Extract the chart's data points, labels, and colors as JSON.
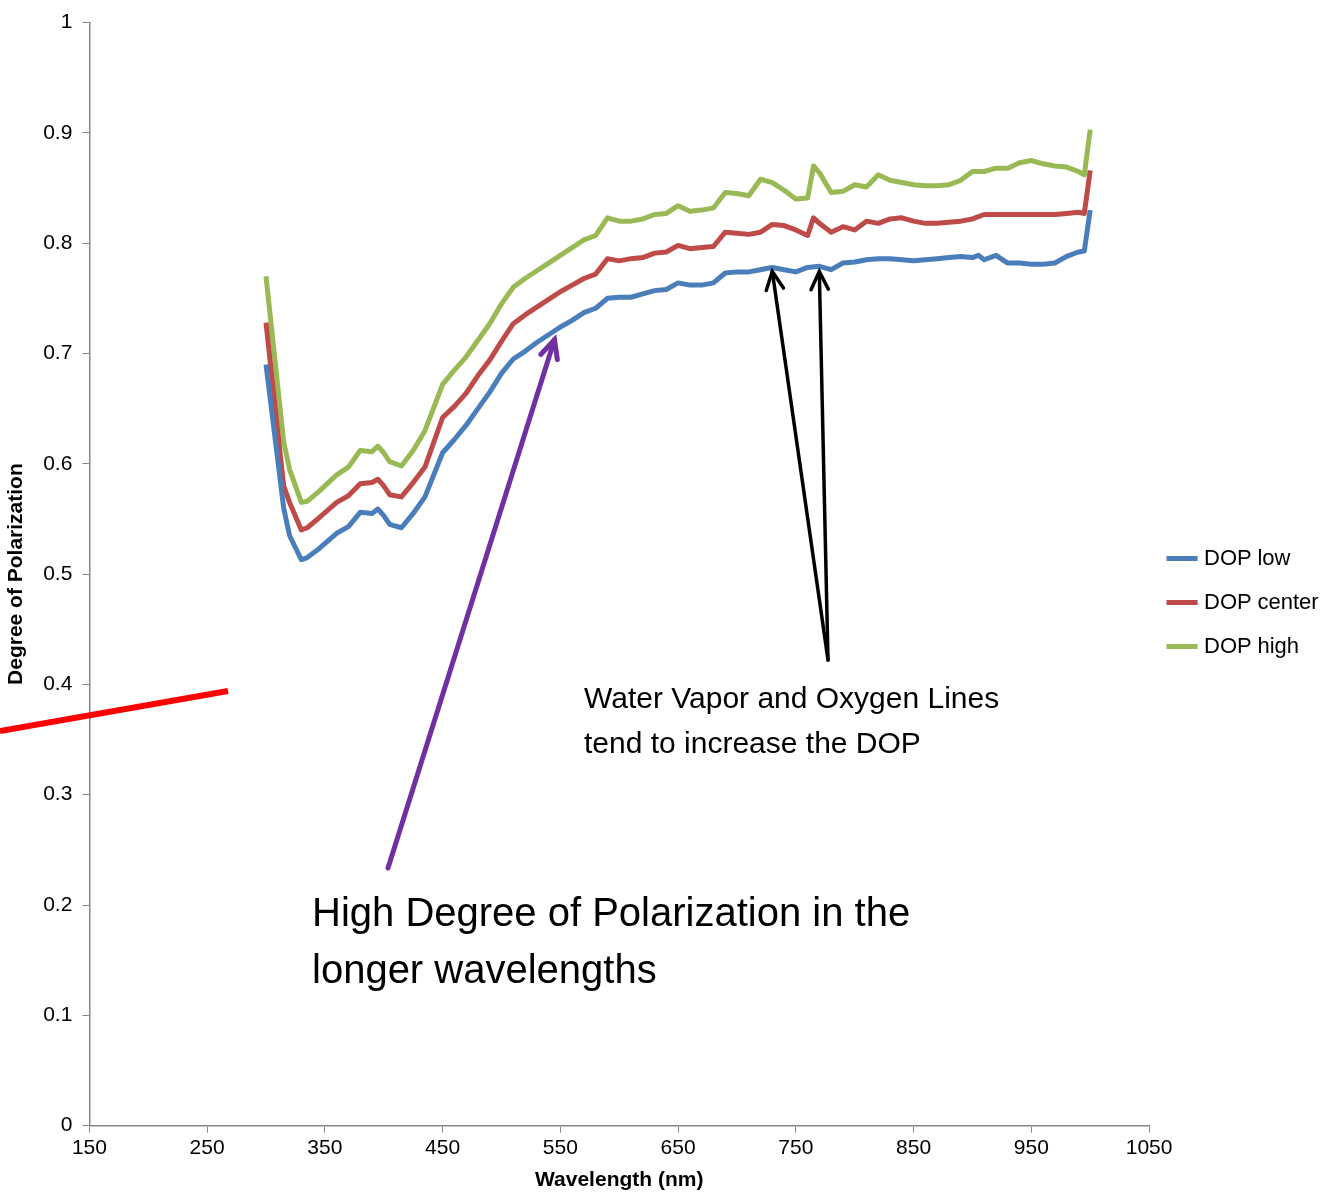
{
  "chart_data": {
    "type": "line",
    "xlabel": "Wavelength (nm)",
    "ylabel": "Degree of Polarization",
    "xlim": [
      150,
      1050
    ],
    "xticks": [
      150,
      250,
      350,
      450,
      550,
      650,
      750,
      850,
      950,
      1050
    ],
    "ylim": [
      0,
      1
    ],
    "yticks": [
      0,
      0.1,
      0.2,
      0.3,
      0.4,
      0.5,
      0.6,
      0.7,
      0.8,
      0.9,
      1
    ],
    "grid": false,
    "legend": "right",
    "marker": "none",
    "line_style": "solid",
    "annotations": [
      {
        "text": "Water Vapor and Oxygen Lines tend to increase the DOP",
        "x": 730,
        "y": 0.778
      },
      {
        "text": "High Degree of Polarization in the longer wavelengths",
        "x": 545,
        "y": 0.716
      }
    ],
    "series": [
      {
        "name": "DOP low",
        "color": "#4a7ebb",
        "x": [
          300,
          315,
          320,
          330,
          335,
          345,
          360,
          370,
          380,
          390,
          395,
          400,
          405,
          415,
          425,
          435,
          450,
          460,
          470,
          480,
          490,
          500,
          510,
          520,
          530,
          540,
          550,
          560,
          570,
          580,
          590,
          600,
          610,
          620,
          630,
          640,
          650,
          660,
          670,
          680,
          690,
          700,
          710,
          720,
          730,
          740,
          750,
          760,
          770,
          780,
          790,
          800,
          810,
          820,
          830,
          840,
          850,
          860,
          870,
          880,
          890,
          900,
          905,
          910,
          920,
          930,
          940,
          950,
          960,
          970,
          980,
          990,
          995,
          1000
        ],
        "values": [
          0.69,
          0.56,
          0.535,
          0.513,
          0.515,
          0.523,
          0.537,
          0.543,
          0.556,
          0.555,
          0.559,
          0.553,
          0.545,
          0.542,
          0.555,
          0.57,
          0.61,
          0.622,
          0.635,
          0.65,
          0.665,
          0.682,
          0.695,
          0.702,
          0.71,
          0.717,
          0.724,
          0.73,
          0.737,
          0.741,
          0.75,
          0.751,
          0.751,
          0.754,
          0.757,
          0.758,
          0.764,
          0.762,
          0.762,
          0.764,
          0.773,
          0.774,
          0.774,
          0.776,
          0.778,
          0.776,
          0.774,
          0.778,
          0.779,
          0.776,
          0.782,
          0.783,
          0.785,
          0.786,
          0.786,
          0.785,
          0.784,
          0.785,
          0.786,
          0.787,
          0.788,
          0.787,
          0.789,
          0.785,
          0.789,
          0.782,
          0.782,
          0.781,
          0.781,
          0.782,
          0.788,
          0.792,
          0.793,
          0.83
        ]
      },
      {
        "name": "DOP center",
        "color": "#be4b48",
        "x": [
          300,
          315,
          320,
          330,
          335,
          345,
          360,
          370,
          380,
          390,
          395,
          400,
          405,
          415,
          425,
          435,
          450,
          460,
          470,
          480,
          490,
          500,
          510,
          520,
          530,
          540,
          550,
          560,
          570,
          580,
          590,
          600,
          610,
          620,
          630,
          640,
          650,
          660,
          670,
          680,
          690,
          700,
          710,
          720,
          730,
          740,
          750,
          760,
          765,
          770,
          780,
          790,
          800,
          810,
          820,
          830,
          840,
          850,
          860,
          870,
          880,
          890,
          900,
          910,
          920,
          930,
          940,
          950,
          960,
          970,
          980,
          990,
          995,
          1000
        ],
        "values": [
          0.728,
          0.58,
          0.565,
          0.54,
          0.542,
          0.551,
          0.565,
          0.571,
          0.582,
          0.583,
          0.586,
          0.58,
          0.572,
          0.57,
          0.583,
          0.597,
          0.642,
          0.652,
          0.664,
          0.68,
          0.694,
          0.711,
          0.727,
          0.735,
          0.742,
          0.749,
          0.756,
          0.762,
          0.768,
          0.772,
          0.786,
          0.784,
          0.786,
          0.787,
          0.791,
          0.792,
          0.798,
          0.795,
          0.796,
          0.797,
          0.81,
          0.809,
          0.808,
          0.81,
          0.817,
          0.816,
          0.812,
          0.807,
          0.823,
          0.818,
          0.81,
          0.815,
          0.812,
          0.82,
          0.818,
          0.822,
          0.823,
          0.82,
          0.818,
          0.818,
          0.819,
          0.82,
          0.822,
          0.826,
          0.826,
          0.826,
          0.826,
          0.826,
          0.826,
          0.826,
          0.827,
          0.828,
          0.827,
          0.866
        ]
      },
      {
        "name": "DOP high",
        "color": "#98b954",
        "x": [
          300,
          315,
          320,
          330,
          335,
          345,
          360,
          370,
          380,
          390,
          395,
          400,
          405,
          415,
          425,
          435,
          450,
          460,
          470,
          480,
          490,
          500,
          510,
          520,
          530,
          540,
          550,
          560,
          570,
          580,
          590,
          600,
          610,
          620,
          630,
          640,
          650,
          660,
          670,
          680,
          690,
          700,
          710,
          720,
          730,
          740,
          750,
          760,
          765,
          770,
          780,
          790,
          800,
          810,
          820,
          830,
          840,
          850,
          860,
          870,
          880,
          890,
          900,
          910,
          920,
          930,
          940,
          950,
          960,
          970,
          980,
          990,
          995,
          1000
        ],
        "values": [
          0.77,
          0.62,
          0.595,
          0.565,
          0.566,
          0.575,
          0.59,
          0.597,
          0.612,
          0.611,
          0.616,
          0.61,
          0.602,
          0.598,
          0.612,
          0.63,
          0.672,
          0.685,
          0.697,
          0.712,
          0.727,
          0.745,
          0.76,
          0.768,
          0.775,
          0.782,
          0.789,
          0.796,
          0.803,
          0.807,
          0.823,
          0.82,
          0.82,
          0.822,
          0.826,
          0.827,
          0.834,
          0.829,
          0.83,
          0.832,
          0.846,
          0.845,
          0.843,
          0.858,
          0.855,
          0.848,
          0.84,
          0.841,
          0.87,
          0.864,
          0.846,
          0.847,
          0.853,
          0.851,
          0.862,
          0.857,
          0.855,
          0.853,
          0.852,
          0.852,
          0.853,
          0.857,
          0.865,
          0.865,
          0.868,
          0.868,
          0.873,
          0.875,
          0.872,
          0.87,
          0.869,
          0.865,
          0.862,
          0.903
        ]
      }
    ]
  }
}
